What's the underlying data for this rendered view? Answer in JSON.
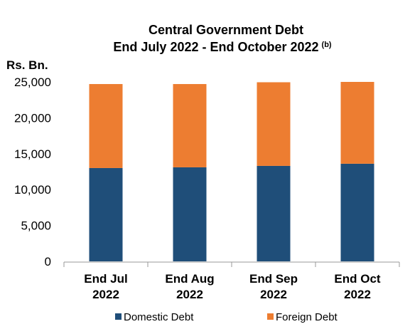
{
  "chart_data": {
    "type": "bar",
    "stacked": true,
    "title_line1": "Central Government Debt",
    "title_line2": "End July 2022 - End October 2022",
    "title_note": "(b)",
    "ylabel": "Rs. Bn.",
    "ylim": [
      0,
      25000
    ],
    "yticks": [
      0,
      5000,
      10000,
      15000,
      20000,
      25000
    ],
    "ytick_labels": [
      "0",
      "5,000",
      "10,000",
      "15,000",
      "20,000",
      "25,000"
    ],
    "categories": [
      [
        "End  Jul",
        "2022"
      ],
      [
        "End  Aug",
        "2022"
      ],
      [
        "End  Sep",
        "2022"
      ],
      [
        "End  Oct",
        "2022"
      ]
    ],
    "series": [
      {
        "name": "Domestic Debt",
        "color": "#1F4E79",
        "values": [
          13000,
          13100,
          13300,
          13600
        ]
      },
      {
        "name": "Foreign Debt",
        "color": "#ED7D31",
        "values": [
          11700,
          11600,
          11650,
          11400
        ]
      }
    ],
    "legend_position": "bottom",
    "grid": false
  }
}
